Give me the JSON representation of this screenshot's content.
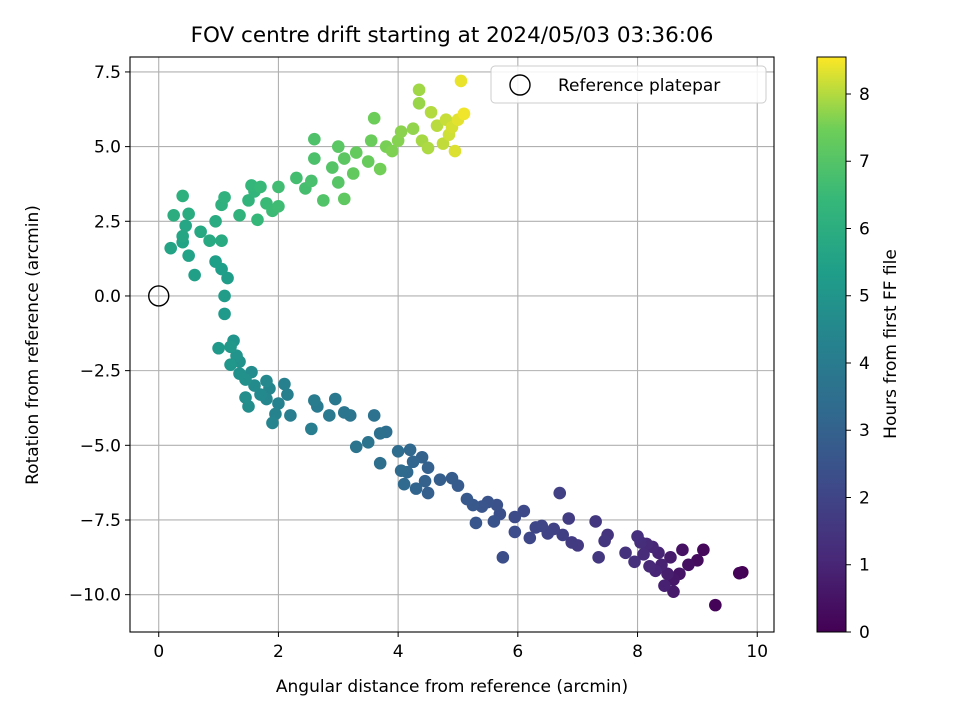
{
  "chart_data": {
    "type": "scatter",
    "title": "FOV centre drift starting at 2024/05/03 03:36:06",
    "xlabel": "Angular distance from reference (arcmin)",
    "ylabel": "Rotation from reference (arcmin)",
    "xlim": [
      -0.48,
      10.28
    ],
    "ylim": [
      -11.25,
      8.0
    ],
    "xticks": [
      {
        "v": 0,
        "label": "0"
      },
      {
        "v": 2,
        "label": "2"
      },
      {
        "v": 4,
        "label": "4"
      },
      {
        "v": 6,
        "label": "6"
      },
      {
        "v": 8,
        "label": "8"
      },
      {
        "v": 10,
        "label": "10"
      }
    ],
    "yticks": [
      {
        "v": 7.5,
        "label": "7.5"
      },
      {
        "v": 5.0,
        "label": "5.0"
      },
      {
        "v": 2.5,
        "label": "2.5"
      },
      {
        "v": 0.0,
        "label": "0.0"
      },
      {
        "v": -2.5,
        "label": "−2.5"
      },
      {
        "v": -5.0,
        "label": "−5.0"
      },
      {
        "v": -7.5,
        "label": "−7.5"
      },
      {
        "v": -10.0,
        "label": "−10.0"
      }
    ],
    "grid": true,
    "legend": {
      "position": "top-right",
      "entries": [
        {
          "label": "Reference platepar",
          "marker": "open-circle"
        }
      ]
    },
    "reference_point": {
      "x": 0,
      "y": 0
    },
    "colorbar": {
      "label": "Hours from first FF file",
      "range": [
        0,
        8.55
      ],
      "colormap": "viridis",
      "ticks": [
        {
          "v": 0,
          "label": "0"
        },
        {
          "v": 1,
          "label": "1"
        },
        {
          "v": 2,
          "label": "2"
        },
        {
          "v": 3,
          "label": "3"
        },
        {
          "v": 4,
          "label": "4"
        },
        {
          "v": 5,
          "label": "5"
        },
        {
          "v": 6,
          "label": "6"
        },
        {
          "v": 7,
          "label": "7"
        },
        {
          "v": 8,
          "label": "8"
        }
      ]
    },
    "points_xyc": [
      [
        9.75,
        -9.25,
        0.0
      ],
      [
        9.7,
        -9.28,
        0.05
      ],
      [
        9.3,
        -10.35,
        0.12
      ],
      [
        9.1,
        -8.5,
        0.2
      ],
      [
        9.0,
        -8.85,
        0.3
      ],
      [
        8.85,
        -9.0,
        0.38
      ],
      [
        8.75,
        -8.5,
        0.45
      ],
      [
        8.7,
        -9.3,
        0.52
      ],
      [
        8.6,
        -9.5,
        0.6
      ],
      [
        8.6,
        -9.9,
        0.66
      ],
      [
        8.55,
        -8.75,
        0.72
      ],
      [
        8.5,
        -9.3,
        0.78
      ],
      [
        8.45,
        -9.7,
        0.85
      ],
      [
        8.4,
        -9.0,
        0.9
      ],
      [
        8.35,
        -8.6,
        0.95
      ],
      [
        8.3,
        -9.2,
        1.0
      ],
      [
        8.25,
        -8.4,
        1.05
      ],
      [
        8.2,
        -9.05,
        1.1
      ],
      [
        8.15,
        -8.3,
        1.15
      ],
      [
        8.1,
        -8.65,
        1.2
      ],
      [
        8.05,
        -8.25,
        1.25
      ],
      [
        8.0,
        -8.05,
        1.3
      ],
      [
        7.95,
        -8.9,
        1.35
      ],
      [
        7.8,
        -8.6,
        1.4
      ],
      [
        7.5,
        -8.0,
        1.45
      ],
      [
        7.45,
        -8.2,
        1.5
      ],
      [
        7.35,
        -8.75,
        1.55
      ],
      [
        7.3,
        -7.55,
        1.6
      ],
      [
        7.0,
        -8.35,
        1.65
      ],
      [
        6.9,
        -8.25,
        1.7
      ],
      [
        6.85,
        -7.45,
        1.75
      ],
      [
        6.75,
        -8.0,
        1.8
      ],
      [
        6.7,
        -6.6,
        1.85
      ],
      [
        6.6,
        -7.8,
        1.9
      ],
      [
        6.5,
        -7.95,
        1.95
      ],
      [
        6.4,
        -7.7,
        2.0
      ],
      [
        6.3,
        -7.75,
        2.05
      ],
      [
        6.2,
        -8.1,
        2.1
      ],
      [
        6.1,
        -7.2,
        2.15
      ],
      [
        5.95,
        -7.4,
        2.2
      ],
      [
        5.95,
        -7.9,
        2.25
      ],
      [
        5.75,
        -8.75,
        2.3
      ],
      [
        5.7,
        -7.3,
        2.35
      ],
      [
        5.65,
        -7.0,
        2.4
      ],
      [
        5.6,
        -7.55,
        2.45
      ],
      [
        5.5,
        -6.9,
        2.5
      ],
      [
        5.4,
        -7.05,
        2.55
      ],
      [
        5.3,
        -7.6,
        2.6
      ],
      [
        5.25,
        -7.0,
        2.65
      ],
      [
        5.15,
        -6.8,
        2.7
      ],
      [
        5.0,
        -6.35,
        2.75
      ],
      [
        4.9,
        -6.1,
        2.8
      ],
      [
        4.7,
        -6.15,
        2.85
      ],
      [
        4.5,
        -6.6,
        2.9
      ],
      [
        4.5,
        -5.75,
        2.95
      ],
      [
        4.45,
        -6.2,
        3.0
      ],
      [
        4.4,
        -5.4,
        3.05
      ],
      [
        4.3,
        -6.45,
        3.1
      ],
      [
        4.25,
        -5.55,
        3.15
      ],
      [
        4.2,
        -5.15,
        3.2
      ],
      [
        4.15,
        -5.9,
        3.25
      ],
      [
        4.1,
        -6.3,
        3.3
      ],
      [
        4.05,
        -5.85,
        3.35
      ],
      [
        4.0,
        -5.2,
        3.4
      ],
      [
        3.8,
        -4.55,
        3.45
      ],
      [
        3.7,
        -5.6,
        3.5
      ],
      [
        3.7,
        -4.6,
        3.55
      ],
      [
        3.6,
        -4.0,
        3.6
      ],
      [
        3.5,
        -4.9,
        3.65
      ],
      [
        3.3,
        -5.05,
        3.7
      ],
      [
        3.2,
        -4.0,
        3.75
      ],
      [
        3.1,
        -3.9,
        3.8
      ],
      [
        2.95,
        -3.45,
        3.85
      ],
      [
        2.85,
        -4.0,
        3.9
      ],
      [
        2.65,
        -3.7,
        3.95
      ],
      [
        2.6,
        -3.5,
        4.0
      ],
      [
        2.55,
        -4.45,
        4.05
      ],
      [
        2.2,
        -4.0,
        4.1
      ],
      [
        2.15,
        -3.3,
        4.15
      ],
      [
        2.1,
        -2.95,
        4.2
      ],
      [
        2.0,
        -3.6,
        4.25
      ],
      [
        1.95,
        -3.95,
        4.3
      ],
      [
        1.9,
        -4.25,
        4.35
      ],
      [
        1.85,
        -3.1,
        4.4
      ],
      [
        1.8,
        -3.45,
        4.45
      ],
      [
        1.8,
        -2.85,
        4.5
      ],
      [
        1.7,
        -3.3,
        4.55
      ],
      [
        1.6,
        -3.0,
        4.6
      ],
      [
        1.55,
        -2.55,
        4.65
      ],
      [
        1.5,
        -3.7,
        4.7
      ],
      [
        1.45,
        -3.4,
        4.75
      ],
      [
        1.45,
        -2.8,
        4.8
      ],
      [
        1.35,
        -2.6,
        4.85
      ],
      [
        1.35,
        -2.2,
        4.9
      ],
      [
        1.3,
        -2.0,
        4.95
      ],
      [
        1.25,
        -1.5,
        5.0
      ],
      [
        1.2,
        -2.3,
        5.05
      ],
      [
        1.2,
        -1.7,
        5.1
      ],
      [
        1.0,
        -1.75,
        5.15
      ],
      [
        1.1,
        -0.6,
        5.2
      ],
      [
        1.1,
        0.0,
        5.25
      ],
      [
        1.15,
        0.6,
        5.3
      ],
      [
        1.05,
        0.9,
        5.35
      ],
      [
        0.95,
        1.15,
        5.4
      ],
      [
        0.6,
        0.7,
        5.45
      ],
      [
        0.5,
        1.35,
        5.5
      ],
      [
        0.4,
        1.8,
        5.55
      ],
      [
        0.2,
        1.6,
        5.6
      ],
      [
        0.4,
        2.0,
        5.65
      ],
      [
        0.45,
        2.35,
        5.7
      ],
      [
        0.7,
        2.15,
        5.75
      ],
      [
        0.85,
        1.85,
        5.8
      ],
      [
        1.05,
        1.85,
        5.85
      ],
      [
        0.95,
        2.5,
        5.9
      ],
      [
        0.5,
        2.75,
        5.95
      ],
      [
        0.25,
        2.7,
        6.0
      ],
      [
        0.4,
        3.35,
        6.05
      ],
      [
        1.05,
        3.05,
        6.1
      ],
      [
        1.1,
        3.3,
        6.15
      ],
      [
        1.35,
        2.7,
        6.2
      ],
      [
        1.5,
        3.2,
        6.25
      ],
      [
        1.6,
        3.5,
        6.3
      ],
      [
        1.55,
        3.7,
        6.35
      ],
      [
        1.65,
        2.55,
        6.4
      ],
      [
        1.7,
        3.65,
        6.45
      ],
      [
        1.8,
        3.1,
        6.5
      ],
      [
        1.9,
        2.85,
        6.55
      ],
      [
        2.0,
        3.0,
        6.6
      ],
      [
        2.0,
        3.65,
        6.65
      ],
      [
        2.3,
        3.95,
        6.7
      ],
      [
        2.45,
        3.6,
        6.75
      ],
      [
        2.55,
        3.85,
        6.8
      ],
      [
        2.6,
        4.6,
        6.85
      ],
      [
        2.6,
        5.25,
        6.9
      ],
      [
        2.75,
        3.2,
        6.95
      ],
      [
        2.9,
        4.3,
        7.0
      ],
      [
        3.0,
        3.8,
        7.05
      ],
      [
        3.0,
        5.0,
        7.1
      ],
      [
        3.1,
        4.6,
        7.15
      ],
      [
        3.1,
        3.25,
        7.2
      ],
      [
        3.25,
        4.1,
        7.25
      ],
      [
        3.3,
        4.8,
        7.3
      ],
      [
        3.5,
        4.5,
        7.35
      ],
      [
        3.55,
        5.2,
        7.4
      ],
      [
        3.6,
        5.95,
        7.45
      ],
      [
        3.7,
        4.25,
        7.5
      ],
      [
        3.8,
        5.0,
        7.55
      ],
      [
        3.9,
        4.85,
        7.6
      ],
      [
        4.0,
        5.2,
        7.65
      ],
      [
        4.05,
        5.5,
        7.7
      ],
      [
        4.25,
        5.6,
        7.75
      ],
      [
        4.35,
        6.45,
        7.8
      ],
      [
        4.35,
        6.9,
        7.85
      ],
      [
        4.4,
        5.2,
        7.9
      ],
      [
        4.5,
        4.95,
        7.95
      ],
      [
        4.55,
        6.15,
        8.0
      ],
      [
        4.65,
        5.7,
        8.05
      ],
      [
        4.75,
        5.1,
        8.1
      ],
      [
        4.8,
        5.9,
        8.15
      ],
      [
        4.85,
        5.4,
        8.2
      ],
      [
        4.9,
        5.65,
        8.25
      ],
      [
        4.95,
        4.85,
        8.3
      ],
      [
        5.0,
        5.9,
        8.35
      ],
      [
        5.05,
        7.2,
        8.4
      ],
      [
        5.1,
        6.1,
        8.45
      ]
    ]
  }
}
